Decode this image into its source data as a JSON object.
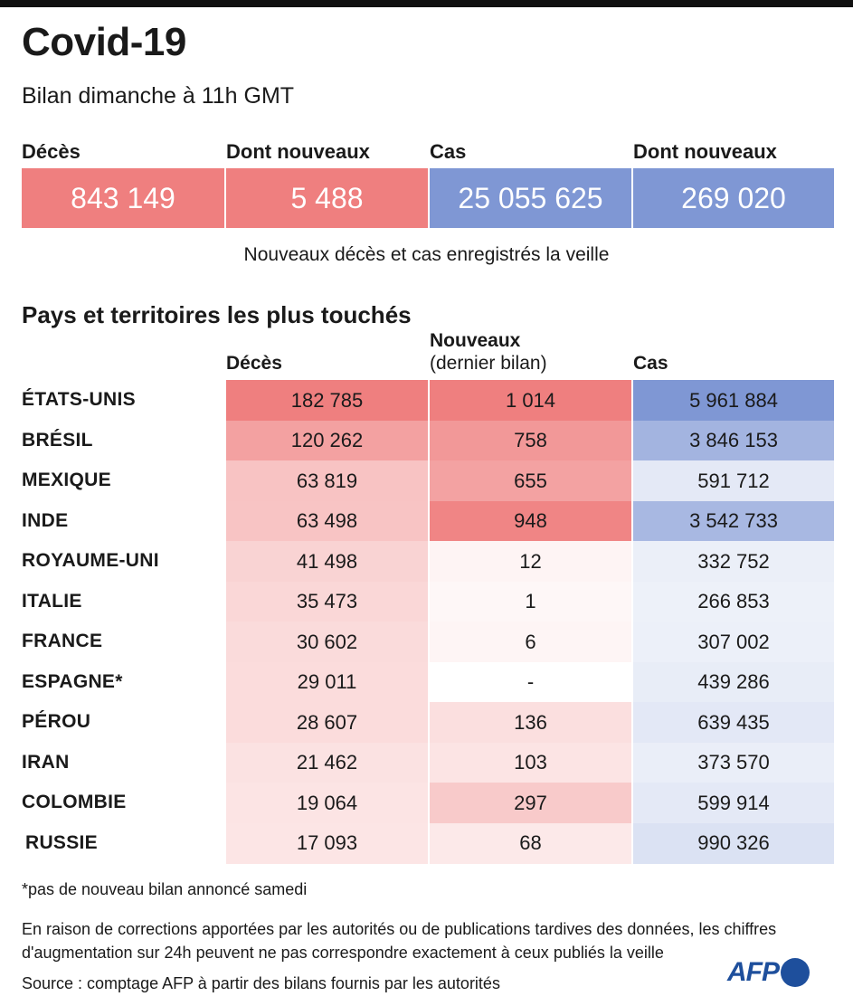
{
  "header": {
    "title": "Covid-19",
    "subtitle": "Bilan dimanche à 11h GMT"
  },
  "summary": {
    "deaths_label": "Décès",
    "deaths_value": "843 149",
    "new_deaths_label": "Dont nouveaux",
    "new_deaths_value": "5 488",
    "cases_label": "Cas",
    "cases_value": "25 055 625",
    "new_cases_label": "Dont nouveaux",
    "new_cases_value": "269 020",
    "note": "Nouveaux décès et cas enregistrés la veille"
  },
  "colors": {
    "deaths": "#ef7f7f",
    "cases": "#7f97d4"
  },
  "table": {
    "section_title": "Pays et territoires les plus touchés",
    "col_deaths": "Décès",
    "col_new_line1": "Nouveaux",
    "col_new_line2": "(dernier bilan)",
    "col_cases": "Cas"
  },
  "chart_data": {
    "type": "table",
    "title": "Pays et territoires les plus touchés",
    "columns": [
      "Décès",
      "Nouveaux (dernier bilan)",
      "Cas"
    ],
    "rows": [
      {
        "country": "ÉTATS-UNIS",
        "deaths": 182785,
        "new": 1014,
        "cases": 5961884,
        "deaths_text": "182 785",
        "new_text": "1 014",
        "cases_text": "5 961 884"
      },
      {
        "country": "BRÉSIL",
        "deaths": 120262,
        "new": 758,
        "cases": 3846153,
        "deaths_text": "120 262",
        "new_text": "758",
        "cases_text": "3 846 153"
      },
      {
        "country": "MEXIQUE",
        "deaths": 63819,
        "new": 655,
        "cases": 591712,
        "deaths_text": "63 819",
        "new_text": "655",
        "cases_text": "591 712"
      },
      {
        "country": "INDE",
        "deaths": 63498,
        "new": 948,
        "cases": 3542733,
        "deaths_text": "63 498",
        "new_text": "948",
        "cases_text": "3 542 733"
      },
      {
        "country": "ROYAUME-UNI",
        "deaths": 41498,
        "new": 12,
        "cases": 332752,
        "deaths_text": "41 498",
        "new_text": "12",
        "cases_text": "332 752"
      },
      {
        "country": "ITALIE",
        "deaths": 35473,
        "new": 1,
        "cases": 266853,
        "deaths_text": "35 473",
        "new_text": "1",
        "cases_text": "266 853"
      },
      {
        "country": "FRANCE",
        "deaths": 30602,
        "new": 6,
        "cases": 307002,
        "deaths_text": "30 602",
        "new_text": "6",
        "cases_text": "307 002"
      },
      {
        "country": "ESPAGNE*",
        "deaths": 29011,
        "new": null,
        "cases": 439286,
        "deaths_text": "29 011",
        "new_text": "-",
        "cases_text": "439 286"
      },
      {
        "country": "PÉROU",
        "deaths": 28607,
        "new": 136,
        "cases": 639435,
        "deaths_text": "28 607",
        "new_text": "136",
        "cases_text": "639 435"
      },
      {
        "country": "IRAN",
        "deaths": 21462,
        "new": 103,
        "cases": 373570,
        "deaths_text": "21 462",
        "new_text": "103",
        "cases_text": "373 570"
      },
      {
        "country": "COLOMBIE",
        "deaths": 19064,
        "new": 297,
        "cases": 599914,
        "deaths_text": "19 064",
        "new_text": "297",
        "cases_text": "599 914"
      },
      {
        "country": "RUSSIE",
        "deaths": 17093,
        "new": 68,
        "cases": 990326,
        "deaths_text": "17 093",
        "new_text": "68",
        "cases_text": "990 326"
      }
    ]
  },
  "footer": {
    "asterisk_note": "*pas de nouveau bilan annoncé samedi",
    "disclaimer_line1": "En raison de corrections apportées par les autorités ou de publications tardives des données, les chiffres",
    "disclaimer_line2": "d'augmentation sur 24h peuvent ne pas correspondre exactement à ceux publiés la veille",
    "source": "Source : comptage AFP à partir des bilans fournis par les autorités",
    "logo": "AFP"
  }
}
